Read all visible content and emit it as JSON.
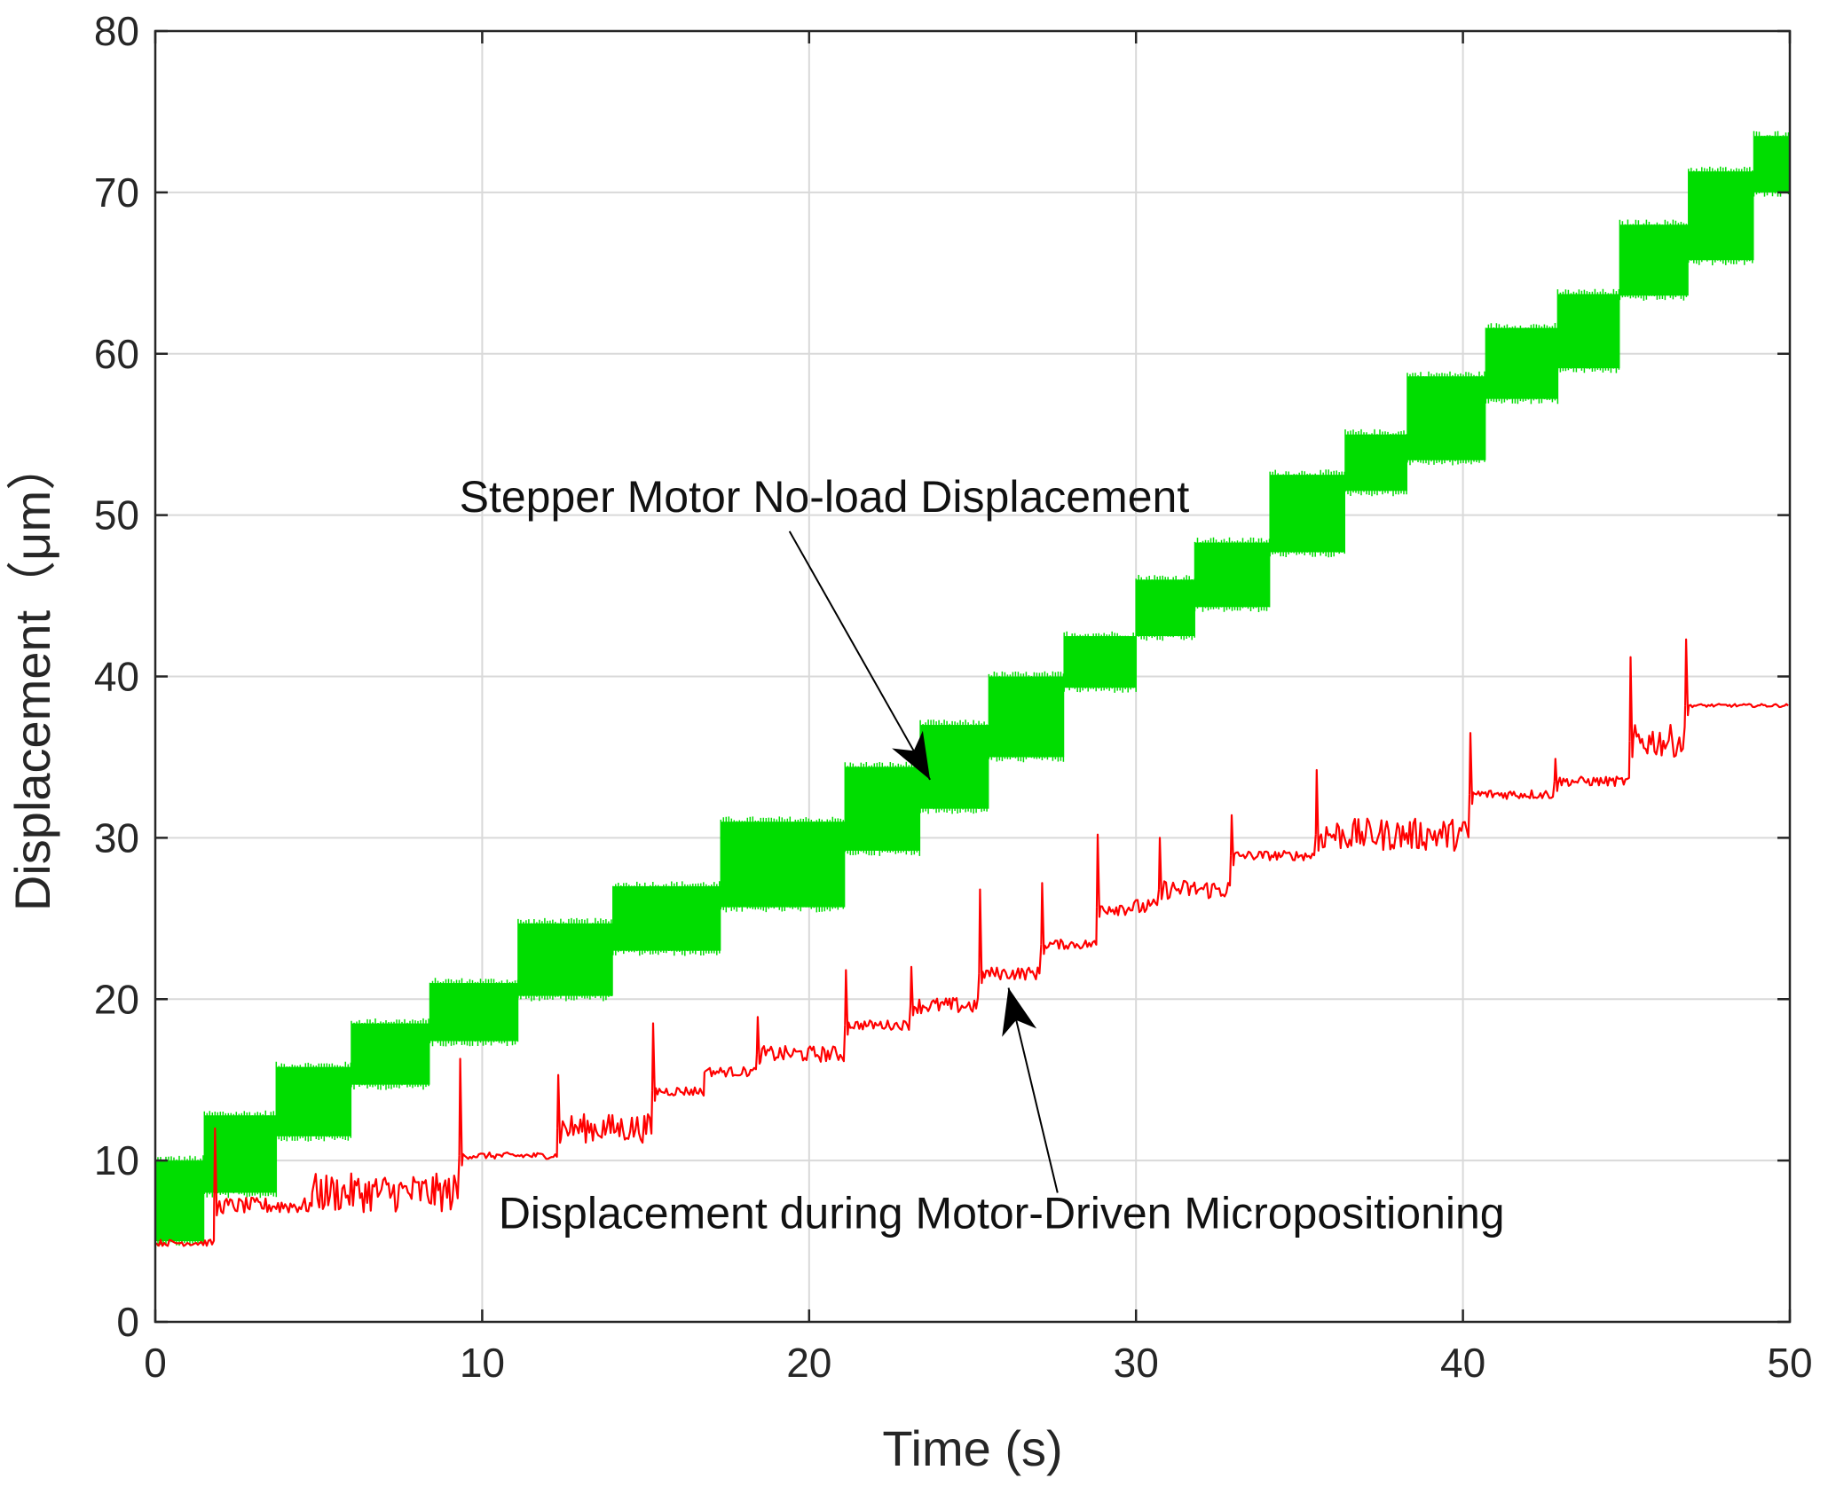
{
  "chart_data": {
    "type": "line",
    "title": "",
    "xlabel": "Time (s)",
    "ylabel": "Displacement（μm）",
    "xlim": [
      0,
      50
    ],
    "ylim": [
      0,
      80
    ],
    "xticks": [
      0,
      10,
      20,
      30,
      40,
      50
    ],
    "yticks": [
      0,
      10,
      20,
      30,
      40,
      50,
      60,
      70,
      80
    ],
    "grid": true,
    "legend": "none",
    "colors": {
      "green": "#00dd00",
      "red": "#ff0000",
      "arrow": "#000000"
    },
    "series": [
      {
        "name": "Stepper Motor No-load Displacement",
        "color": "#00dd00",
        "steps": [
          {
            "x0": 0.0,
            "x1": 1.5,
            "lo": 5.0,
            "hi": 10.0
          },
          {
            "x0": 1.5,
            "x1": 3.7,
            "lo": 8.0,
            "hi": 12.8
          },
          {
            "x0": 3.7,
            "x1": 6.0,
            "lo": 11.5,
            "hi": 15.8
          },
          {
            "x0": 6.0,
            "x1": 8.4,
            "lo": 14.7,
            "hi": 18.5
          },
          {
            "x0": 8.4,
            "x1": 11.1,
            "lo": 17.4,
            "hi": 21.0
          },
          {
            "x0": 11.1,
            "x1": 14.0,
            "lo": 20.2,
            "hi": 24.7
          },
          {
            "x0": 14.0,
            "x1": 17.3,
            "lo": 23.0,
            "hi": 27.0
          },
          {
            "x0": 17.3,
            "x1": 21.1,
            "lo": 25.7,
            "hi": 31.0
          },
          {
            "x0": 21.1,
            "x1": 23.4,
            "lo": 29.2,
            "hi": 34.4
          },
          {
            "x0": 23.4,
            "x1": 25.5,
            "lo": 31.8,
            "hi": 37.0
          },
          {
            "x0": 25.5,
            "x1": 27.8,
            "lo": 35.0,
            "hi": 40.0
          },
          {
            "x0": 27.8,
            "x1": 30.0,
            "lo": 39.3,
            "hi": 42.5
          },
          {
            "x0": 30.0,
            "x1": 31.8,
            "lo": 42.5,
            "hi": 46.0
          },
          {
            "x0": 31.8,
            "x1": 34.1,
            "lo": 44.3,
            "hi": 48.3
          },
          {
            "x0": 34.1,
            "x1": 36.4,
            "lo": 47.7,
            "hi": 52.5
          },
          {
            "x0": 36.4,
            "x1": 38.3,
            "lo": 51.5,
            "hi": 55.0
          },
          {
            "x0": 38.3,
            "x1": 40.7,
            "lo": 53.4,
            "hi": 58.6
          },
          {
            "x0": 40.7,
            "x1": 42.9,
            "lo": 57.2,
            "hi": 61.6
          },
          {
            "x0": 42.9,
            "x1": 44.8,
            "lo": 59.1,
            "hi": 63.7
          },
          {
            "x0": 44.8,
            "x1": 46.9,
            "lo": 63.6,
            "hi": 68.0
          },
          {
            "x0": 46.9,
            "x1": 48.9,
            "lo": 65.8,
            "hi": 71.3
          },
          {
            "x0": 48.9,
            "x1": 50.0,
            "lo": 70.0,
            "hi": 73.5
          }
        ]
      },
      {
        "name": "Displacement during Motor-Driven Micropositioning",
        "color": "#ff0000",
        "steps": [
          {
            "x0": 0.0,
            "x1": 1.8,
            "y": 4.9,
            "noise": 0.2,
            "spike": null
          },
          {
            "x0": 1.8,
            "x1": 4.8,
            "y": 7.2,
            "noise": 0.5,
            "spike": 12.0
          },
          {
            "x0": 4.8,
            "x1": 9.3,
            "y": 8.0,
            "noise": 1.2,
            "spike": null
          },
          {
            "x0": 9.3,
            "x1": 12.3,
            "y": 10.3,
            "noise": 0.2,
            "spike": 16.3
          },
          {
            "x0": 12.3,
            "x1": 15.2,
            "y": 12.0,
            "noise": 0.9,
            "spike": 15.3
          },
          {
            "x0": 15.2,
            "x1": 16.8,
            "y": 14.3,
            "noise": 0.3,
            "spike": 18.5
          },
          {
            "x0": 16.8,
            "x1": 18.4,
            "y": 15.5,
            "noise": 0.3,
            "spike": null
          },
          {
            "x0": 18.4,
            "x1": 21.1,
            "y": 16.6,
            "noise": 0.5,
            "spike": 18.9
          },
          {
            "x0": 21.1,
            "x1": 23.1,
            "y": 18.4,
            "noise": 0.3,
            "spike": 21.8
          },
          {
            "x0": 23.1,
            "x1": 25.2,
            "y": 19.6,
            "noise": 0.5,
            "spike": 22.0
          },
          {
            "x0": 25.2,
            "x1": 27.1,
            "y": 21.6,
            "noise": 0.4,
            "spike": 26.8
          },
          {
            "x0": 27.1,
            "x1": 28.8,
            "y": 23.4,
            "noise": 0.3,
            "spike": 27.2
          },
          {
            "x0": 28.8,
            "x1": 30.7,
            "y": 25.7,
            "noise": 0.5,
            "spike": 30.2
          },
          {
            "x0": 30.7,
            "x1": 32.9,
            "y": 26.8,
            "noise": 0.6,
            "spike": 30.0
          },
          {
            "x0": 32.9,
            "x1": 35.5,
            "y": 28.9,
            "noise": 0.3,
            "spike": 31.4
          },
          {
            "x0": 35.5,
            "x1": 40.2,
            "y": 30.2,
            "noise": 1.0,
            "spike": 34.2
          },
          {
            "x0": 40.2,
            "x1": 42.8,
            "y": 32.7,
            "noise": 0.3,
            "spike": 36.5
          },
          {
            "x0": 42.8,
            "x1": 45.1,
            "y": 33.5,
            "noise": 0.3,
            "spike": 34.9
          },
          {
            "x0": 45.1,
            "x1": 46.8,
            "y": 36.0,
            "noise": 1.0,
            "spike": 41.2
          },
          {
            "x0": 46.8,
            "x1": 50.0,
            "y": 38.2,
            "noise": 0.1,
            "spike": 42.3
          }
        ]
      }
    ],
    "annotations": [
      {
        "text": "Stepper Motor No-load Displacement",
        "text_at": [
          9.3,
          50.2
        ],
        "arrow_from": [
          19.4,
          49.0
        ],
        "arrow_to": [
          23.7,
          33.6
        ]
      },
      {
        "text": "Displacement during Motor-Driven Micropositioning",
        "text_at": [
          10.5,
          5.8
        ],
        "arrow_from": [
          27.6,
          8.0
        ],
        "arrow_to": [
          26.1,
          20.7
        ]
      }
    ]
  }
}
